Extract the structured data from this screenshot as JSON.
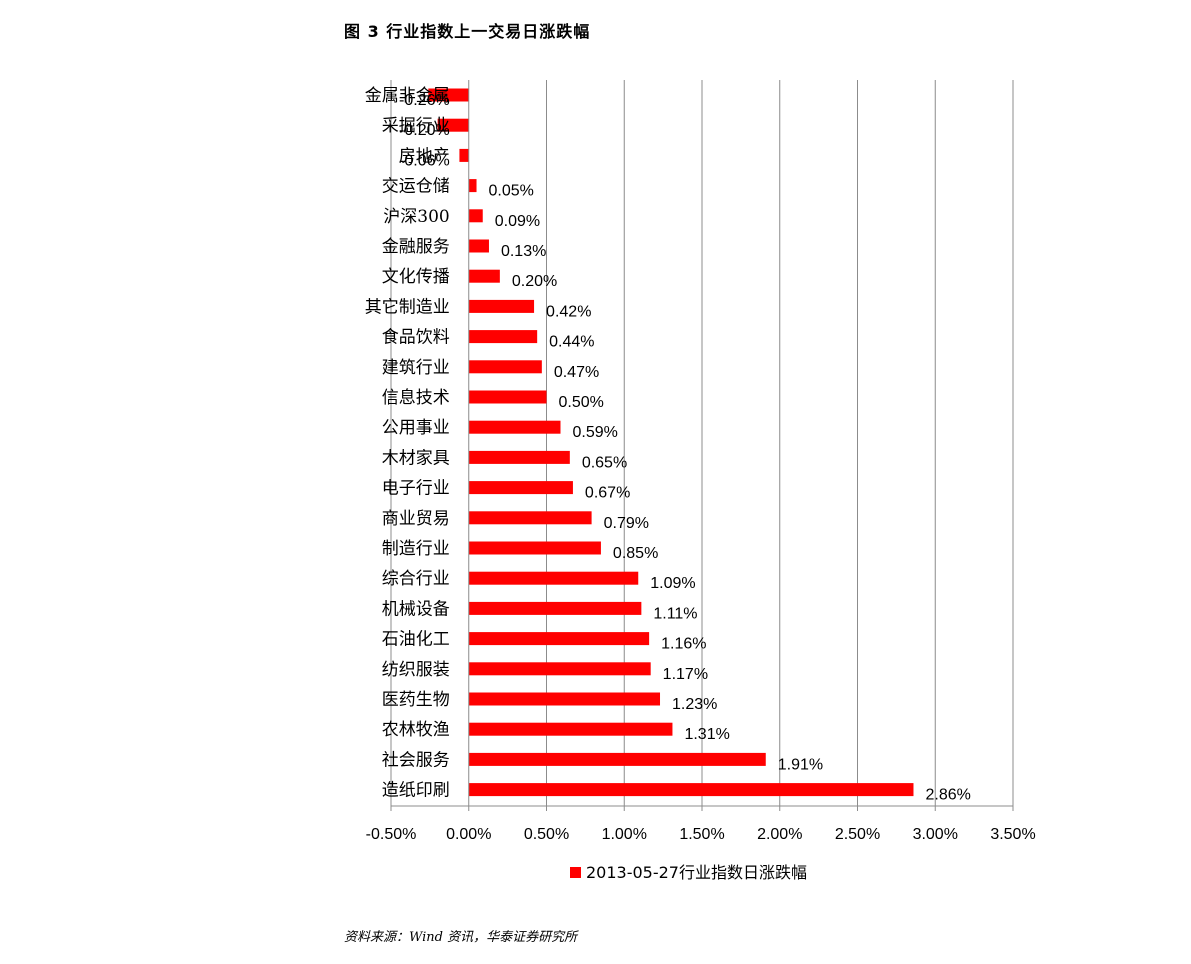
{
  "figure": {
    "title": "图 3   行业指数上一交易日涨跌幅",
    "source": "资料来源：Wind 资讯，华泰证券研究所"
  },
  "chart_data": {
    "type": "bar",
    "orientation": "horizontal",
    "categories": [
      "金属非金属",
      "采掘行业",
      "房地产",
      "交运仓储",
      "沪深300",
      "金融服务",
      "文化传播",
      "其它制造业",
      "食品饮料",
      "建筑行业",
      "信息技术",
      "公用事业",
      "木材家具",
      "电子行业",
      "商业贸易",
      "制造行业",
      "综合行业",
      "机械设备",
      "石油化工",
      "纺织服装",
      "医药生物",
      "农林牧渔",
      "社会服务",
      "造纸印刷"
    ],
    "series": [
      {
        "name": "2013-05-27行业指数日涨跌幅",
        "color": "#ff0000",
        "values": [
          -0.26,
          -0.2,
          -0.06,
          0.05,
          0.09,
          0.13,
          0.2,
          0.42,
          0.44,
          0.47,
          0.5,
          0.59,
          0.65,
          0.67,
          0.79,
          0.85,
          1.09,
          1.11,
          1.16,
          1.17,
          1.23,
          1.31,
          1.91,
          2.86
        ],
        "labels": [
          "-0.26%",
          "-0.20%",
          "-0.06%",
          "0.05%",
          "0.09%",
          "0.13%",
          "0.20%",
          "0.42%",
          "0.44%",
          "0.47%",
          "0.50%",
          "0.59%",
          "0.65%",
          "0.67%",
          "0.79%",
          "0.85%",
          "1.09%",
          "1.11%",
          "1.16%",
          "1.17%",
          "1.23%",
          "1.31%",
          "1.91%",
          "2.86%"
        ]
      }
    ],
    "xlim": [
      -0.5,
      3.5
    ],
    "xticks": [
      -0.5,
      0,
      0.5,
      1.0,
      1.5,
      2.0,
      2.5,
      3.0,
      3.5
    ],
    "xtick_labels": [
      "-0.50%",
      "0.00%",
      "0.50%",
      "1.00%",
      "1.50%",
      "2.00%",
      "2.50%",
      "3.00%",
      "3.50%"
    ],
    "grid": "vertical",
    "legend_position": "bottom"
  }
}
